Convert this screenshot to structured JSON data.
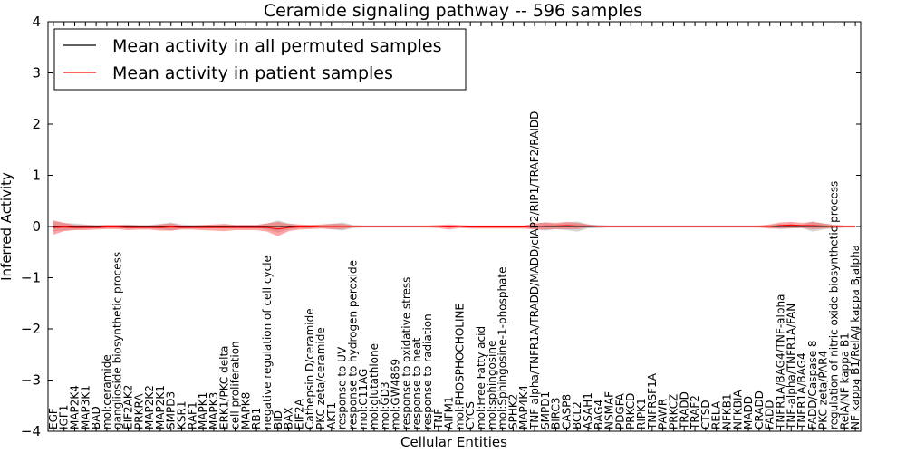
{
  "chart_data": {
    "type": "line",
    "title": "Ceramide signaling pathway -- 596 samples",
    "xlabel": "Cellular Entities",
    "ylabel": "Inferred Activity",
    "ylim": [
      -4,
      4
    ],
    "yticks": [
      "−4",
      "−3",
      "−2",
      "−1",
      "0",
      "1",
      "2",
      "3",
      "4"
    ],
    "legend_position": "top-left",
    "colors": {
      "permuted": "#000000",
      "patient": "#ff0000",
      "patient_band": "#ff4d4d",
      "permuted_band": "#a0a0a0"
    },
    "categories": [
      "EGF",
      "IGF1",
      "MAP2K4",
      "MAP3K1",
      "BAD",
      "mol:ceramide",
      "ganglioside biosynthetic process",
      "EIF2AK2",
      "PRKRA",
      "MAP2K2",
      "MAP2K1",
      "SMPD3",
      "KSR1",
      "RAF1",
      "MAPK1",
      "MAPK3",
      "ERK1/PKC delta",
      "cell proliferation",
      "MAPK8",
      "RB1",
      "negative regulation of cell cycle",
      "BID",
      "BAX",
      "EIF2A",
      "Cathepsin D/ceramide",
      "PKC zeta/ceramide",
      "AKT1",
      "response to UV",
      "response to hydrogen peroxide",
      "mol:C11AG",
      "mol:glutathione",
      "mol:GD3",
      "mol:GW4869",
      "response to oxidative stress",
      "response to heat",
      "response to radiation",
      "TNF",
      "AIFM1",
      "mol:PHOSPHOCHOLINE",
      "CYCS",
      "mol:Free Fatty acid",
      "mol:sphingosine",
      "mol:Sphingosine-1-phosphate",
      "SPHK2",
      "MAP4K4",
      "TNF-alpha/TNFR1A/TRADD/MADD/cIAP2/RIP1/TRAF2/RAIDD",
      "SMPD1",
      "BIRC3",
      "CASP8",
      "BCL2",
      "ASAH1",
      "BAG4",
      "NSMAF",
      "PDGFA",
      "PRKCD",
      "RIPK1",
      "TNFRSF1A",
      "PAWR",
      "PRKCZ",
      "TRADD",
      "TRAF2",
      "CTSD",
      "RELA",
      "NFKB1",
      "NFKBIA",
      "MADD",
      "CRADD",
      "FADD",
      "TNFR1A/BAG4/TNF-alpha",
      "TNF-alpha/TNFR1A/FAN",
      "TNFR1A/BAG4",
      "FADD/Caspase 8",
      "PKC zeta/PAR4",
      "regulation of nitric oxide biosynthetic process",
      "RelA/NF kappa B1",
      "NF kappa B1/RelA/I kappa B alpha"
    ],
    "series": [
      {
        "name": "Mean activity in all permuted samples",
        "values": [
          0,
          0,
          0,
          0,
          0,
          0,
          0,
          0,
          0,
          0,
          0,
          0,
          0,
          0,
          0,
          0,
          0,
          0,
          0,
          0,
          0,
          0,
          0,
          0,
          0,
          0,
          0,
          0,
          0,
          0,
          0,
          0,
          0,
          0,
          0,
          0,
          0,
          0,
          0,
          0,
          0,
          0,
          0,
          0,
          0,
          0,
          0,
          0,
          0,
          0,
          0,
          0,
          0,
          0,
          0,
          0,
          0,
          0,
          0,
          0,
          0,
          0,
          0,
          0,
          0,
          0,
          0,
          0,
          0,
          0,
          0,
          0,
          0,
          0,
          0,
          0
        ],
        "spread": [
          0.1,
          0.07,
          0.06,
          0.04,
          0.03,
          0.03,
          0.03,
          0.04,
          0.03,
          0.03,
          0.05,
          0.08,
          0.04,
          0.03,
          0.03,
          0.03,
          0.03,
          0.03,
          0.03,
          0.03,
          0.06,
          0.12,
          0.06,
          0.03,
          0.03,
          0.03,
          0.05,
          0.08,
          0.03,
          0.02,
          0.02,
          0.02,
          0.02,
          0.02,
          0.02,
          0.02,
          0.02,
          0.02,
          0.02,
          0.02,
          0.02,
          0.02,
          0.02,
          0.02,
          0.02,
          0.05,
          0.08,
          0.05,
          0.07,
          0.1,
          0.04,
          0.03,
          0.02,
          0.02,
          0.02,
          0.02,
          0.02,
          0.02,
          0.02,
          0.02,
          0.02,
          0.02,
          0.02,
          0.02,
          0.02,
          0.02,
          0.02,
          0.03,
          0.05,
          0.04,
          0.03,
          0.1,
          0.06,
          0.03,
          0.02,
          0.02
        ]
      },
      {
        "name": "Mean activity in patient samples",
        "values": [
          -0.02,
          -0.01,
          -0.02,
          -0.02,
          -0.02,
          -0.01,
          -0.01,
          -0.02,
          -0.02,
          -0.02,
          -0.02,
          -0.01,
          -0.02,
          -0.02,
          -0.02,
          -0.02,
          -0.02,
          -0.02,
          -0.02,
          -0.02,
          -0.02,
          -0.05,
          -0.02,
          -0.01,
          -0.01,
          0,
          0,
          0,
          0,
          0,
          0,
          0,
          0,
          0,
          0,
          0,
          0,
          -0.01,
          0,
          -0.01,
          -0.01,
          -0.01,
          -0.01,
          -0.01,
          -0.01,
          0,
          0.01,
          0.01,
          0.02,
          0.01,
          0.01,
          0,
          0,
          0,
          0,
          0,
          0,
          0,
          0,
          0,
          0,
          0,
          0,
          0,
          0,
          0,
          0,
          0,
          0.02,
          0.03,
          0.02,
          0.02,
          0.01,
          0,
          0,
          0
        ],
        "spread": [
          0.14,
          0.08,
          0.05,
          0.05,
          0.04,
          0.04,
          0.04,
          0.05,
          0.04,
          0.04,
          0.06,
          0.07,
          0.04,
          0.04,
          0.05,
          0.06,
          0.07,
          0.05,
          0.05,
          0.05,
          0.08,
          0.14,
          0.07,
          0.05,
          0.04,
          0.04,
          0.05,
          0.05,
          0.02,
          0.02,
          0.02,
          0.02,
          0.02,
          0.02,
          0.02,
          0.02,
          0.03,
          0.05,
          0.03,
          0.03,
          0.03,
          0.03,
          0.03,
          0.03,
          0.03,
          0.06,
          0.07,
          0.06,
          0.07,
          0.06,
          0.03,
          0.02,
          0.02,
          0.02,
          0.02,
          0.02,
          0.02,
          0.02,
          0.02,
          0.02,
          0.02,
          0.02,
          0.02,
          0.02,
          0.02,
          0.02,
          0.02,
          0.04,
          0.06,
          0.06,
          0.05,
          0.07,
          0.05,
          0.03,
          0.02,
          0.02
        ]
      }
    ]
  }
}
